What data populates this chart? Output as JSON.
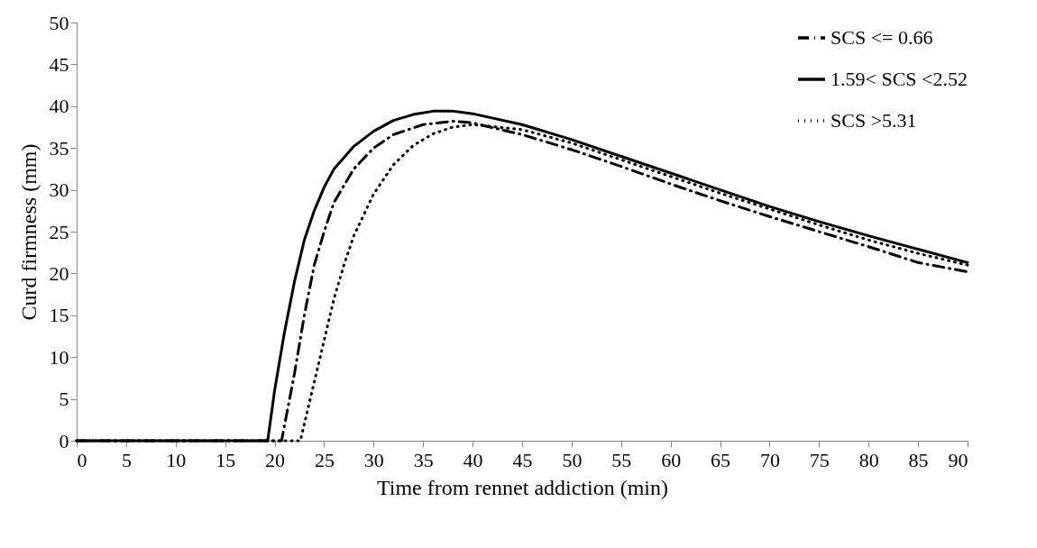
{
  "chart_data": {
    "type": "line",
    "xlabel": "Time from rennet addiction (min)",
    "ylabel": "Curd firmness (mm)",
    "xlim": [
      0,
      90
    ],
    "xticks": [
      0,
      5,
      10,
      15,
      20,
      25,
      30,
      35,
      40,
      45,
      50,
      55,
      60,
      65,
      70,
      75,
      80,
      85,
      90
    ],
    "ylim": [
      0,
      50
    ],
    "yticks": [
      0,
      5,
      10,
      15,
      20,
      25,
      30,
      35,
      40,
      45,
      50
    ],
    "grid": false,
    "legend": "top right",
    "marker": "none",
    "series": [
      {
        "name": "SCS <= 0.66",
        "color": "#000000",
        "line_style": "dashed",
        "x": [
          0,
          20.7,
          22,
          23,
          24,
          25,
          26,
          28,
          30,
          32,
          35,
          38,
          40,
          45,
          50,
          55,
          60,
          65,
          70,
          75,
          80,
          85,
          90
        ],
        "values": [
          0,
          0,
          8,
          15,
          21,
          25,
          28.5,
          32.5,
          35,
          36.6,
          37.8,
          38.2,
          38,
          36.6,
          34.8,
          32.8,
          30.7,
          28.7,
          26.8,
          25,
          23.2,
          21.3,
          20.2
        ]
      },
      {
        "name": "1.59< SCS <2.52",
        "color": "#000000",
        "line_style": "solid",
        "x": [
          0,
          19.3,
          20,
          21,
          22,
          23,
          24,
          25,
          26,
          28,
          30,
          32,
          34,
          36,
          38,
          40,
          45,
          50,
          55,
          60,
          65,
          70,
          75,
          80,
          85,
          90
        ],
        "values": [
          0,
          0,
          6,
          13,
          19,
          24,
          27.5,
          30.3,
          32.5,
          35.2,
          37,
          38.3,
          39,
          39.4,
          39.4,
          39.1,
          37.8,
          36,
          34,
          32,
          30,
          28,
          26.2,
          24.5,
          22.9,
          21.3
        ]
      },
      {
        "name": "SCS >5.31",
        "color": "#000000",
        "line_style": "dotted",
        "x": [
          0,
          22.6,
          24,
          25,
          26,
          27,
          28,
          30,
          32,
          34,
          36,
          38,
          40,
          45,
          50,
          55,
          60,
          65,
          70,
          75,
          80,
          85,
          90
        ],
        "values": [
          0,
          0,
          7,
          12,
          17,
          21,
          24.5,
          29.5,
          33,
          35.3,
          36.7,
          37.5,
          37.8,
          37.2,
          35.6,
          33.6,
          31.6,
          29.6,
          27.7,
          25.8,
          24,
          22.4,
          21
        ]
      }
    ]
  }
}
